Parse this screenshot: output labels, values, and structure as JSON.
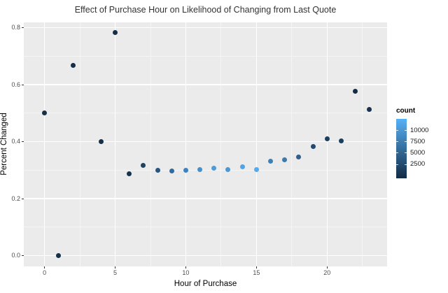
{
  "colors": {
    "outer_bg": "#FFFFFF",
    "panel_bg": "#EBEBEB",
    "grid_major": "#FFFFFF",
    "grid_minor": "#F5F5F5",
    "title_text": "#333333",
    "axis_text": "#4D4D4D",
    "axis_title_text": "#000000",
    "tick_mark": "#333333"
  },
  "chart_data": {
    "type": "scatter",
    "title": "Effect of Purchase Hour on Likelihood of Changing from Last Quote",
    "xlabel": "Hour of Purchase",
    "ylabel": "Percent Changed",
    "xlim": [
      -1.47,
      24.25
    ],
    "ylim": [
      -0.0375,
      0.8186
    ],
    "x_ticks": [
      0,
      5,
      10,
      15,
      20
    ],
    "x_minor_ticks": [
      2.5,
      7.5,
      12.5,
      17.5,
      22.5
    ],
    "y_ticks": [
      0.0,
      0.2,
      0.4,
      0.6,
      0.8
    ],
    "y_minor_ticks": [
      0.1,
      0.3,
      0.5,
      0.7
    ],
    "grid": true,
    "legend": {
      "title": "count",
      "position": "right",
      "labels": [
        10000,
        7500,
        5000,
        2500
      ],
      "bar_range": [
        -600,
        12600
      ],
      "gradient_low": "#132B43",
      "gradient_mid": "#346E9D",
      "gradient_high": "#56B1F7"
    },
    "points": [
      {
        "hour": 0,
        "percent": 0.5,
        "count_approx": 300,
        "color": "#16304A"
      },
      {
        "hour": 1,
        "percent": 0.0,
        "count_approx": 300,
        "color": "#16304A"
      },
      {
        "hour": 2,
        "percent": 0.667,
        "count_approx": 150,
        "color": "#142E48"
      },
      {
        "hour": 4,
        "percent": 0.4,
        "count_approx": 300,
        "color": "#16304A"
      },
      {
        "hour": 5,
        "percent": 0.783,
        "count_approx": 150,
        "color": "#142E48"
      },
      {
        "hour": 6,
        "percent": 0.288,
        "count_approx": 600,
        "color": "#18334F"
      },
      {
        "hour": 7,
        "percent": 0.318,
        "count_approx": 1800,
        "color": "#1E425F"
      },
      {
        "hour": 8,
        "percent": 0.3,
        "count_approx": 3800,
        "color": "#28567E"
      },
      {
        "hour": 9,
        "percent": 0.297,
        "count_approx": 5800,
        "color": "#336B9C"
      },
      {
        "hour": 10,
        "percent": 0.3,
        "count_approx": 7800,
        "color": "#3F83BC"
      },
      {
        "hour": 11,
        "percent": 0.303,
        "count_approx": 9000,
        "color": "#4690CB"
      },
      {
        "hour": 12,
        "percent": 0.306,
        "count_approx": 10000,
        "color": "#4C9CDA"
      },
      {
        "hour": 13,
        "percent": 0.303,
        "count_approx": 9600,
        "color": "#4A98D5"
      },
      {
        "hour": 14,
        "percent": 0.313,
        "count_approx": 10900,
        "color": "#50A3E6"
      },
      {
        "hour": 15,
        "percent": 0.303,
        "count_approx": 11600,
        "color": "#53AAEF"
      },
      {
        "hour": 16,
        "percent": 0.331,
        "count_approx": 7600,
        "color": "#3E81B6"
      },
      {
        "hour": 17,
        "percent": 0.337,
        "count_approx": 7000,
        "color": "#3A7AAE"
      },
      {
        "hour": 18,
        "percent": 0.346,
        "count_approx": 4700,
        "color": "#2E608B"
      },
      {
        "hour": 19,
        "percent": 0.383,
        "count_approx": 2800,
        "color": "#224A6E"
      },
      {
        "hour": 20,
        "percent": 0.411,
        "count_approx": 1500,
        "color": "#1C3F5E"
      },
      {
        "hour": 21,
        "percent": 0.404,
        "count_approx": 1400,
        "color": "#1C3D5B"
      },
      {
        "hour": 22,
        "percent": 0.577,
        "count_approx": 100,
        "color": "#132D46"
      },
      {
        "hour": 23,
        "percent": 0.513,
        "count_approx": 400,
        "color": "#16324E"
      }
    ]
  }
}
